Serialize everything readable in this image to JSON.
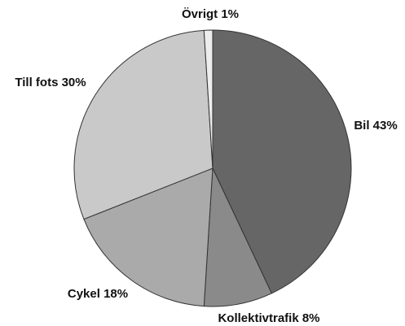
{
  "chart_data": {
    "type": "pie",
    "categories": [
      "Bil",
      "Kollektivtrafik",
      "Cykel",
      "Till fots",
      "Övrigt"
    ],
    "values": [
      43,
      8,
      18,
      30,
      1
    ],
    "value_labels": [
      "43%",
      "8%",
      "18%",
      "30%",
      "1%"
    ],
    "colors": [
      "#666666",
      "#8a8a8a",
      "#aaaaaa",
      "#c9c9c9",
      "#ededed"
    ]
  }
}
